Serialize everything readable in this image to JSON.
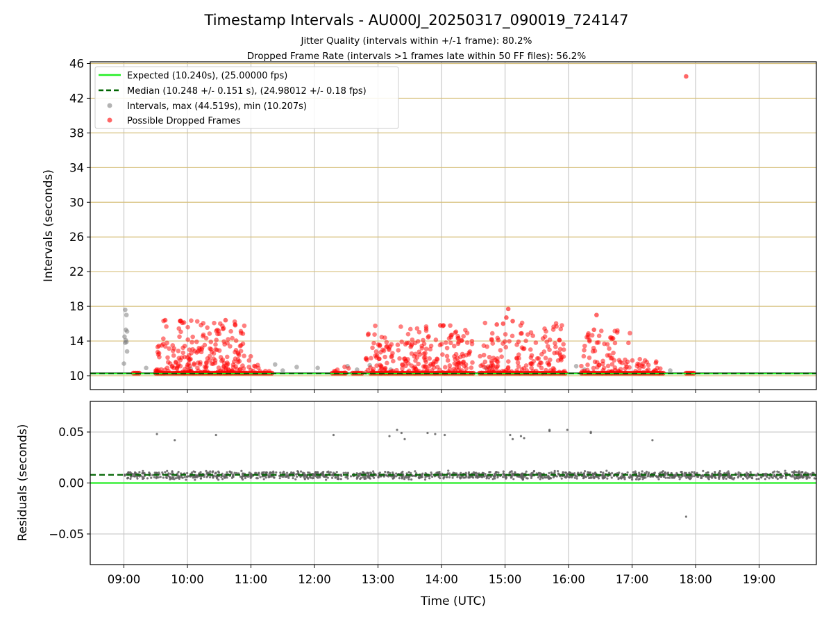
{
  "chart_data": [
    {
      "type": "scatter",
      "title": "Timestamp Intervals - AU000J_20250317_090019_724147",
      "subtitle_lines": [
        "Jitter Quality (intervals within +/-1 frame): 80.2%",
        "Dropped Frame Rate (intervals >1 frames late within 50 FF files): 56.2%"
      ],
      "xlabel": "",
      "ylabel": "Intervals (seconds)",
      "xlim": [
        8.47,
        19.9
      ],
      "ylim": [
        8.4,
        46.2
      ],
      "x_tick_hours": [
        9,
        10,
        11,
        12,
        13,
        14,
        15,
        16,
        17,
        18,
        19
      ],
      "x_tick_labels": [],
      "y_ticks": [
        10,
        14,
        18,
        22,
        26,
        30,
        34,
        38,
        42,
        46
      ],
      "grid": true,
      "legend_position": "top-left",
      "legend": [
        "Expected (10.240s), (25.00000 fps)",
        "Median (10.248 +/- 0.151 s), (24.98012 +/- 0.18 fps)",
        "Intervals, max (44.519s), min (10.207s)",
        "Possible Dropped Frames"
      ],
      "expected_value": 10.24,
      "median_value": 10.248,
      "baseline_band": [
        10.207,
        10.4
      ],
      "series": [
        {
          "name": "Intervals, max (44.519s), min (10.207s)",
          "color": "#808080",
          "points": [
            [
              9.02,
              17.6
            ],
            [
              9.04,
              17.0
            ],
            [
              9.03,
              15.3
            ],
            [
              9.05,
              15.1
            ],
            [
              9.01,
              14.5
            ],
            [
              9.03,
              14.1
            ],
            [
              9.02,
              13.8
            ],
            [
              9.04,
              13.9
            ],
            [
              9.05,
              12.8
            ],
            [
              9.0,
              11.4
            ],
            [
              9.35,
              10.9
            ],
            [
              10.05,
              10.8
            ],
            [
              11.38,
              11.3
            ],
            [
              11.5,
              10.6
            ],
            [
              11.72,
              11.0
            ],
            [
              12.05,
              10.9
            ],
            [
              12.52,
              11.1
            ],
            [
              12.67,
              10.7
            ],
            [
              12.87,
              11.2
            ],
            [
              13.2,
              10.7
            ],
            [
              14.7,
              10.9
            ],
            [
              14.77,
              11.0
            ],
            [
              16.12,
              11.1
            ],
            [
              16.25,
              10.7
            ],
            [
              17.6,
              10.6
            ]
          ]
        },
        {
          "name": "Possible Dropped Frames",
          "color": "#ff0000",
          "clusters": [
            {
              "x_range": [
                9.5,
                10.9
              ],
              "count": 230,
              "y_max": 16.4,
              "seed": 11
            },
            {
              "x_range": [
                10.9,
                11.3
              ],
              "count": 15,
              "y_max": 12.4,
              "seed": 12
            },
            {
              "x_range": [
                12.3,
                12.55
              ],
              "count": 6,
              "y_max": 11.9,
              "seed": 13
            },
            {
              "x_range": [
                12.8,
                14.5
              ],
              "count": 230,
              "y_max": 15.8,
              "seed": 14
            },
            {
              "x_range": [
                14.6,
                15.95
              ],
              "count": 150,
              "y_max": 16.2,
              "seed": 15
            },
            {
              "x_range": [
                16.2,
                17.0
              ],
              "count": 80,
              "y_max": 15.4,
              "seed": 16
            },
            {
              "x_range": [
                17.0,
                17.5
              ],
              "count": 30,
              "y_max": 12.6,
              "seed": 17
            }
          ],
          "baseline_runs": [
            [
              9.15,
              9.25
            ],
            [
              9.5,
              11.35
            ],
            [
              12.28,
              12.5
            ],
            [
              12.6,
              12.75
            ],
            [
              12.88,
              14.5
            ],
            [
              14.6,
              15.95
            ],
            [
              16.2,
              17.5
            ],
            [
              17.85,
              17.98
            ]
          ],
          "points": [
            [
              17.85,
              44.519
            ],
            [
              15.05,
              17.7
            ],
            [
              16.44,
              17.0
            ],
            [
              15.02,
              16.7
            ],
            [
              15.12,
              16.3
            ],
            [
              14.97,
              16.0
            ],
            [
              14.87,
              15.9
            ],
            [
              13.98,
              15.8
            ],
            [
              14.03,
              15.8
            ],
            [
              9.65,
              16.4
            ],
            [
              9.92,
              16.1
            ],
            [
              10.6,
              16.4
            ],
            [
              10.75,
              15.9
            ],
            [
              16.4,
              15.3
            ],
            [
              16.7,
              14.3
            ]
          ]
        }
      ]
    },
    {
      "type": "scatter",
      "xlabel": "Time (UTC)",
      "ylabel": "Residuals (seconds)",
      "xlim": [
        8.47,
        19.9
      ],
      "ylim": [
        -0.08,
        0.08
      ],
      "y_ticks": [
        -0.05,
        0.0,
        0.05
      ],
      "y_tick_labels": [
        "−0.05",
        "0.00",
        "0.05"
      ],
      "x_tick_hours": [
        9,
        10,
        11,
        12,
        13,
        14,
        15,
        16,
        17,
        18,
        19
      ],
      "x_tick_labels": [
        "09:00",
        "10:00",
        "11:00",
        "12:00",
        "13:00",
        "14:00",
        "15:00",
        "16:00",
        "17:00",
        "18:00",
        "19:00"
      ],
      "grid": true,
      "expected_residual": 0.0,
      "median_residual": 0.008,
      "series": [
        {
          "name": "Residuals",
          "color": "#606060",
          "band": {
            "x_range": [
              9.0,
              19.9
            ],
            "center": 0.0075,
            "spread": 0.0045,
            "count": 1500,
            "seed": 21
          },
          "points": [
            [
              9.52,
              0.048
            ],
            [
              9.8,
              0.042
            ],
            [
              10.45,
              0.047
            ],
            [
              12.3,
              0.047
            ],
            [
              13.18,
              0.046
            ],
            [
              13.3,
              0.052
            ],
            [
              13.37,
              0.049
            ],
            [
              13.42,
              0.043
            ],
            [
              13.78,
              0.049
            ],
            [
              13.9,
              0.048
            ],
            [
              14.05,
              0.047
            ],
            [
              15.08,
              0.047
            ],
            [
              15.12,
              0.043
            ],
            [
              15.25,
              0.046
            ],
            [
              15.3,
              0.044
            ],
            [
              15.7,
              0.052
            ],
            [
              15.7,
              0.051
            ],
            [
              15.98,
              0.052
            ],
            [
              16.35,
              0.049
            ],
            [
              16.35,
              0.05
            ],
            [
              17.32,
              0.042
            ],
            [
              17.85,
              -0.033
            ]
          ]
        }
      ]
    }
  ]
}
